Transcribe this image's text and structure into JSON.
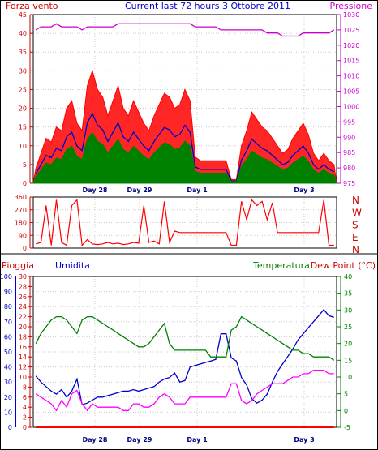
{
  "header": {
    "title": "Current last 72 hours 3 Ottobre 2011",
    "left_label": "Forza vento",
    "right_label": "Pressione"
  },
  "dir_panel": {
    "right_labels": [
      "N",
      "W",
      "S",
      "E",
      "N"
    ]
  },
  "bottom_header": {
    "pioggia": "Pioggia",
    "umidita": "Umidita",
    "temperatura": "Temperatura",
    "dewpoint": "Dew Point (°C)"
  },
  "colors": {
    "wind_gust": "#ff0000",
    "wind_avg": "#0000cc",
    "wind_low": "#008000",
    "pressure": "#cc00cc",
    "rain": "#ff0000",
    "humidity": "#0000cc",
    "temperature": "#008000",
    "dewpoint": "#ff00ff",
    "grid": "#cccccc",
    "axis_red": "#cc0000",
    "axis_blue": "#0000cc",
    "axis_green": "#008000",
    "axis_purple": "#cc00cc"
  },
  "chart_data": [
    {
      "type": "line",
      "xlabels": [
        "Day 28",
        "Day 29",
        "Day 1",
        "Day 3"
      ],
      "ylim_left": [
        0,
        45
      ],
      "yticks_left": [
        0,
        5,
        10,
        15,
        20,
        25,
        30,
        35,
        40,
        45
      ],
      "ylim_right": [
        975,
        1030
      ],
      "yticks_right": [
        975,
        980,
        985,
        990,
        995,
        1000,
        1005,
        1010,
        1015,
        1020,
        1025,
        1030
      ],
      "series": [
        {
          "name": "Forza vento",
          "values": [
            4,
            8,
            12,
            11,
            15,
            14,
            20,
            22,
            16,
            14,
            26,
            30,
            25,
            23,
            18,
            22,
            26,
            20,
            18,
            22,
            19,
            16,
            14,
            18,
            21,
            24,
            23,
            20,
            21,
            25,
            22,
            7,
            6,
            6,
            6,
            6,
            6,
            6,
            1,
            1,
            10,
            14,
            19,
            17,
            15,
            14,
            12,
            10,
            8,
            9,
            12,
            14,
            16,
            13,
            8,
            6,
            8,
            6,
            5
          ]
        },
        {
          "name": "Pressione",
          "values": [
            1025,
            1026,
            1026,
            1026,
            1027,
            1026,
            1026,
            1026,
            1026,
            1025,
            1026,
            1026,
            1026,
            1026,
            1026,
            1026,
            1027,
            1027,
            1027,
            1027,
            1027,
            1027,
            1027,
            1027,
            1027,
            1027,
            1027,
            1027,
            1027,
            1027,
            1027,
            1026,
            1026,
            1026,
            1026,
            1026,
            1025,
            1025,
            1025,
            1025,
            1025,
            1025,
            1025,
            1025,
            1025,
            1024,
            1024,
            1024,
            1023,
            1023,
            1023,
            1023,
            1024,
            1024,
            1024,
            1024,
            1024,
            1024,
            1025
          ]
        }
      ]
    },
    {
      "type": "line",
      "xlabels": [],
      "yticks_left": [
        0,
        90,
        180,
        270,
        360
      ],
      "right_labels": [
        "N",
        "W",
        "S",
        "E",
        "N"
      ],
      "series": [
        {
          "name": "",
          "values": [
            30,
            40,
            300,
            20,
            340,
            40,
            20,
            300,
            340,
            20,
            60,
            30,
            25,
            30,
            40,
            30,
            35,
            25,
            30,
            40,
            35,
            300,
            40,
            50,
            30,
            330,
            40,
            120,
            110,
            110,
            110,
            110,
            110,
            110,
            110,
            110,
            110,
            110,
            20,
            20,
            330,
            200,
            340,
            300,
            330,
            200,
            320,
            110,
            110,
            110,
            110,
            110,
            110,
            110,
            110,
            110,
            340,
            20,
            20
          ]
        }
      ]
    },
    {
      "type": "line",
      "xlabels": [
        "Day 28",
        "Day 29",
        "Day 1",
        "Day 3"
      ],
      "ylim_pioggia": [
        0,
        30
      ],
      "yticks_pioggia": [
        0,
        2,
        4,
        6,
        8,
        10,
        12,
        14,
        16,
        18,
        20,
        22,
        24,
        26,
        28,
        30
      ],
      "ylim_umidita": [
        0,
        100
      ],
      "yticks_umidita": [
        0,
        10,
        20,
        30,
        40,
        50,
        60,
        70,
        80,
        90,
        100
      ],
      "ylim_temp": [
        -5,
        40
      ],
      "yticks_temp": [
        -5,
        0,
        5,
        10,
        15,
        20,
        25,
        30,
        35,
        40
      ],
      "series": [
        {
          "name": "Pioggia",
          "values": [
            0,
            0,
            0,
            0,
            0,
            0,
            0,
            0,
            0,
            0,
            0,
            0,
            0,
            0,
            0,
            0,
            0,
            0,
            0,
            0,
            0,
            0,
            0,
            0,
            0,
            0,
            0,
            0,
            0,
            0,
            0,
            0,
            0,
            0,
            0,
            0,
            0,
            0,
            0,
            0,
            0,
            0,
            0,
            0,
            0,
            0,
            0,
            0,
            0,
            0,
            0,
            0,
            0,
            0,
            0,
            0,
            0,
            0,
            0
          ]
        },
        {
          "name": "Umidita",
          "values": [
            34,
            30,
            27,
            24,
            22,
            25,
            20,
            24,
            32,
            15,
            16,
            18,
            20,
            20,
            21,
            22,
            23,
            24,
            24,
            25,
            24,
            25,
            26,
            27,
            30,
            32,
            33,
            36,
            30,
            31,
            40,
            41,
            42,
            43,
            44,
            45,
            62,
            62,
            46,
            44,
            33,
            28,
            19,
            16,
            18,
            22,
            30,
            37,
            42,
            47,
            52,
            58,
            62,
            66,
            70,
            74,
            78,
            74,
            73
          ]
        },
        {
          "name": "Temperatura",
          "values": [
            20,
            23,
            25,
            27,
            28,
            28,
            27,
            25,
            23,
            27,
            28,
            28,
            27,
            26,
            25,
            24,
            23,
            22,
            21,
            20,
            19,
            19,
            20,
            22,
            24,
            26,
            20,
            18,
            18,
            18,
            18,
            18,
            18,
            18,
            16,
            16,
            16,
            16,
            24,
            25,
            28,
            27,
            26,
            25,
            24,
            23,
            22,
            21,
            20,
            19,
            18,
            18,
            17,
            17,
            16,
            16,
            16,
            16,
            15
          ]
        },
        {
          "name": "Dew Point (°C)",
          "values": [
            5,
            4,
            3,
            2,
            0,
            3,
            1,
            5,
            6,
            2,
            0,
            2,
            1,
            1,
            1,
            1,
            1,
            0,
            0,
            2,
            2,
            1,
            1,
            2,
            4,
            5,
            4,
            2,
            2,
            2,
            4,
            4,
            4,
            4,
            4,
            4,
            4,
            4,
            8,
            8,
            3,
            2,
            3,
            5,
            6,
            7,
            8,
            8,
            8,
            9,
            10,
            10,
            11,
            11,
            12,
            12,
            12,
            11,
            11
          ]
        }
      ]
    }
  ]
}
